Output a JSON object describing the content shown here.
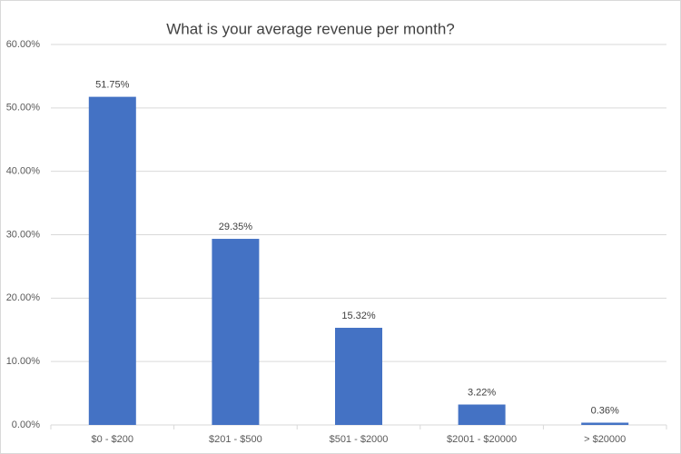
{
  "chart_data": {
    "type": "bar",
    "title": "What is your average revenue per month?",
    "categories": [
      "$0 - $200",
      "$201 - $500",
      "$501 - $2000",
      "$2001 - $20000",
      "> $20000"
    ],
    "values": [
      51.75,
      29.35,
      15.32,
      3.22,
      0.36
    ],
    "value_labels": [
      "51.75%",
      "29.35%",
      "15.32%",
      "3.22%",
      "0.36%"
    ],
    "color": "#4472c4",
    "ylim": [
      0,
      60
    ],
    "yticks": [
      {
        "value": 0,
        "label": "0.00%"
      },
      {
        "value": 10,
        "label": "10.00%"
      },
      {
        "value": 20,
        "label": "20.00%"
      },
      {
        "value": 30,
        "label": "30.00%"
      },
      {
        "value": 40,
        "label": "40.00%"
      },
      {
        "value": 50,
        "label": "50.00%"
      },
      {
        "value": 60,
        "label": "60.00%"
      }
    ],
    "grid": true
  }
}
